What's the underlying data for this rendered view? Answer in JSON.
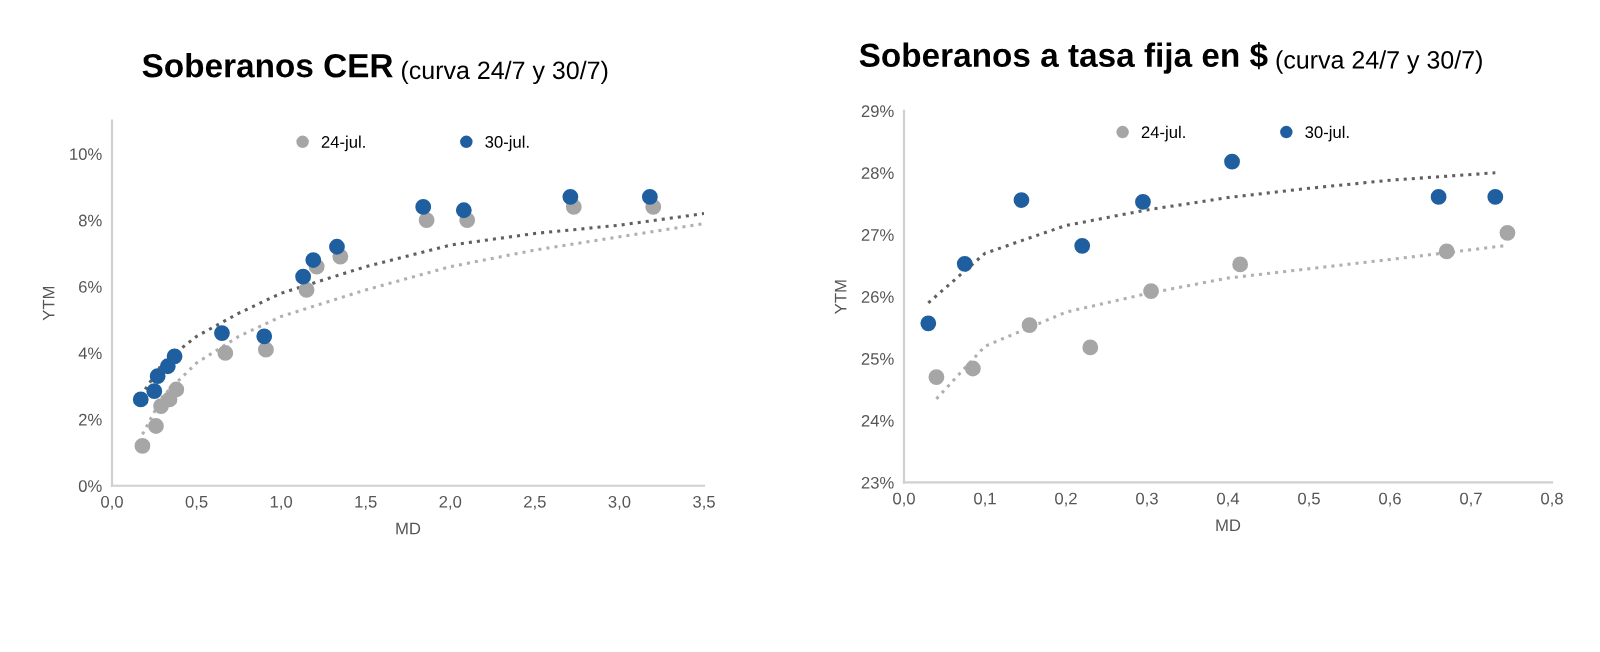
{
  "chart_data": [
    {
      "type": "scatter",
      "title": "Soberanos CER",
      "subtitle": "(curva 24/7 y 30/7)",
      "xlabel": "MD",
      "ylabel": "YTM",
      "xlim": [
        0,
        3.5
      ],
      "xticks": [
        {
          "value": 0,
          "label": "0,0"
        },
        {
          "value": 0.5,
          "label": "0,5"
        },
        {
          "value": 1,
          "label": "1,0"
        },
        {
          "value": 1.5,
          "label": "1,5"
        },
        {
          "value": 2,
          "label": "2,0"
        },
        {
          "value": 2.5,
          "label": "2,5"
        },
        {
          "value": 3,
          "label": "3,0"
        },
        {
          "value": 3.5,
          "label": "3,5"
        }
      ],
      "ylim": [
        0,
        11
      ],
      "yticks": [
        {
          "value": 0,
          "label": "0%"
        },
        {
          "value": 2,
          "label": "2%"
        },
        {
          "value": 4,
          "label": "4%"
        },
        {
          "value": 6,
          "label": "6%"
        },
        {
          "value": 8,
          "label": "8%"
        },
        {
          "value": 10,
          "label": "10%"
        }
      ],
      "grid": false,
      "legend": "top",
      "marker": "circle",
      "series": [
        {
          "name": "24-jul.",
          "color": "#a6a6a6",
          "x": [
            0.18,
            0.26,
            0.29,
            0.34,
            0.38,
            0.67,
            0.91,
            1.15,
            1.21,
            1.35,
            1.86,
            2.1,
            2.73,
            3.2
          ],
          "values": [
            1.2,
            1.8,
            2.4,
            2.6,
            2.9,
            4.0,
            4.1,
            5.9,
            6.6,
            6.9,
            8.0,
            8.0,
            8.4,
            8.4
          ]
        },
        {
          "name": "30-jul.",
          "color": "#1f5fa0",
          "x": [
            0.17,
            0.25,
            0.27,
            0.33,
            0.37,
            0.65,
            0.9,
            1.13,
            1.19,
            1.33,
            1.84,
            2.08,
            2.71,
            3.18
          ],
          "values": [
            2.6,
            2.85,
            3.3,
            3.6,
            3.9,
            4.6,
            4.5,
            6.3,
            6.8,
            7.2,
            8.4,
            8.3,
            8.7,
            8.7
          ]
        },
        {
          "type": "line",
          "marker": "none",
          "line_style": "dotted",
          "color": "#b0b0b0",
          "x": [
            0.18,
            0.3,
            0.5,
            0.75,
            1.0,
            1.5,
            2.0,
            2.5,
            3.0,
            3.5
          ],
          "values": [
            1.55,
            2.7,
            3.7,
            4.5,
            5.1,
            5.9,
            6.6,
            7.1,
            7.5,
            7.9
          ]
        },
        {
          "type": "line",
          "marker": "none",
          "line_style": "dotted",
          "color": "#606060",
          "x": [
            0.17,
            0.3,
            0.5,
            0.75,
            1.0,
            1.5,
            2.0,
            2.5,
            3.0,
            3.5
          ],
          "values": [
            2.7,
            3.7,
            4.5,
            5.2,
            5.8,
            6.6,
            7.25,
            7.6,
            7.85,
            8.2
          ]
        }
      ]
    },
    {
      "type": "scatter",
      "title": "Soberanos a tasa fija en $",
      "subtitle": "(curva 24/7 y 30/7)",
      "xlabel": "MD",
      "ylabel": "YTM",
      "xlim": [
        0,
        0.8
      ],
      "xticks": [
        {
          "value": 0,
          "label": "0,0"
        },
        {
          "value": 0.1,
          "label": "0,1"
        },
        {
          "value": 0.2,
          "label": "0,2"
        },
        {
          "value": 0.3,
          "label": "0,3"
        },
        {
          "value": 0.4,
          "label": "0,4"
        },
        {
          "value": 0.5,
          "label": "0,5"
        },
        {
          "value": 0.6,
          "label": "0,6"
        },
        {
          "value": 0.7,
          "label": "0,7"
        },
        {
          "value": 0.8,
          "label": "0,8"
        }
      ],
      "ylim": [
        23,
        29
      ],
      "yticks": [
        {
          "value": 23,
          "label": "23%"
        },
        {
          "value": 24,
          "label": "24%"
        },
        {
          "value": 25,
          "label": "25%"
        },
        {
          "value": 26,
          "label": "26%"
        },
        {
          "value": 27,
          "label": "27%"
        },
        {
          "value": 28,
          "label": "28%"
        },
        {
          "value": 29,
          "label": "29%"
        }
      ],
      "grid": false,
      "legend": "top",
      "marker": "circle",
      "series": [
        {
          "name": "24-jul.",
          "color": "#a6a6a6",
          "x": [
            0.04,
            0.085,
            0.155,
            0.23,
            0.305,
            0.415,
            0.67,
            0.745
          ],
          "values": [
            24.7,
            24.84,
            25.54,
            25.18,
            26.09,
            26.52,
            26.73,
            27.03
          ]
        },
        {
          "name": "30-jul.",
          "color": "#1f5fa0",
          "x": [
            0.03,
            0.075,
            0.145,
            0.22,
            0.295,
            0.405,
            0.66,
            0.73
          ],
          "values": [
            25.57,
            26.53,
            27.56,
            26.82,
            27.53,
            28.18,
            27.61,
            27.61
          ]
        },
        {
          "type": "line",
          "marker": "none",
          "line_style": "dotted",
          "color": "#b0b0b0",
          "x": [
            0.04,
            0.1,
            0.2,
            0.3,
            0.4,
            0.5,
            0.6,
            0.74
          ],
          "values": [
            24.35,
            25.2,
            25.75,
            26.05,
            26.3,
            26.45,
            26.6,
            26.82
          ]
        },
        {
          "type": "line",
          "marker": "none",
          "line_style": "dotted",
          "color": "#606060",
          "x": [
            0.03,
            0.1,
            0.2,
            0.3,
            0.4,
            0.5,
            0.6,
            0.73
          ],
          "values": [
            25.9,
            26.7,
            27.15,
            27.4,
            27.6,
            27.75,
            27.88,
            28.0
          ]
        }
      ]
    }
  ]
}
